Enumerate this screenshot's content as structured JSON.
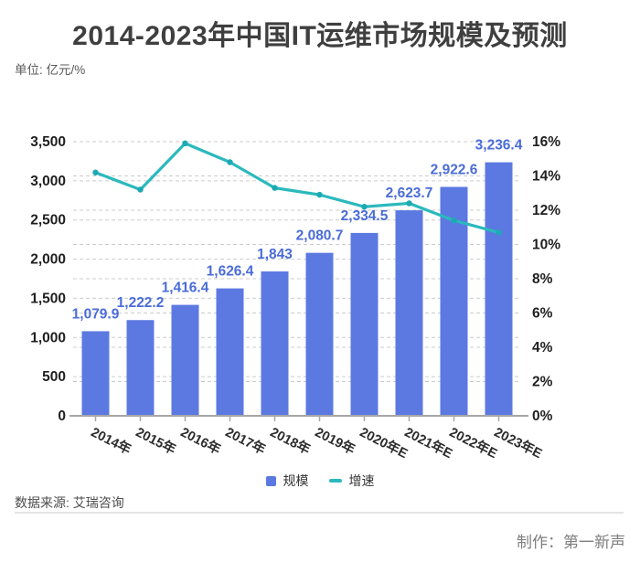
{
  "header": {
    "title": "2014-2023年中国IT运维市场规模及预测",
    "unit_label": "单位: 亿元/%"
  },
  "chart_data": {
    "type": "bar+line combo",
    "categories": [
      "2014年",
      "2015年",
      "2016年",
      "2017年",
      "2018年",
      "2019年",
      "2020年E",
      "2021年E",
      "2022年E",
      "2023年E"
    ],
    "series": [
      {
        "name": "规模",
        "type": "bar",
        "axis": "left",
        "color": "#5b79e1",
        "label_color": "#4a6cd8",
        "values": [
          1079.9,
          1222.2,
          1416.4,
          1626.4,
          1843,
          2080.7,
          2334.5,
          2623.7,
          2922.6,
          3236.4
        ],
        "labels": [
          "1,079.9",
          "1,222.2",
          "1,416.4",
          "1,626.4",
          "1,843",
          "2,080.7",
          "2,334.5",
          "2,623.7",
          "2,922.6",
          "3,236.4"
        ]
      },
      {
        "name": "增速",
        "type": "line",
        "axis": "right",
        "color": "#2bb9bd",
        "values": [
          14.2,
          13.2,
          15.9,
          14.8,
          13.3,
          12.9,
          12.2,
          12.4,
          11.4,
          10.7
        ]
      }
    ],
    "left_axis": {
      "min": 0,
      "max": 3500,
      "step": 500,
      "tick_labels": [
        "0",
        "500",
        "1,000",
        "1,500",
        "2,000",
        "2,500",
        "3,000",
        "3,500"
      ]
    },
    "right_axis": {
      "min": 0,
      "max": 16,
      "step": 2,
      "tick_labels": [
        "0%",
        "2%",
        "4%",
        "6%",
        "8%",
        "10%",
        "12%",
        "14%",
        "16%"
      ]
    },
    "grid": {
      "style": "dashed",
      "color": "#cccccc",
      "axis_line_color": "#a6a6a6",
      "tick_label_color": "#1f1f1f"
    },
    "legend_position": "bottom"
  },
  "legend": {
    "items": [
      {
        "label": "规模",
        "color": "#5b79e1",
        "swatch": "square"
      },
      {
        "label": "增速",
        "color": "#2bb9bd",
        "swatch": "dash"
      }
    ]
  },
  "footer": {
    "source": "数据来源: 艾瑞咨询",
    "credit": "制作：第一新声"
  }
}
